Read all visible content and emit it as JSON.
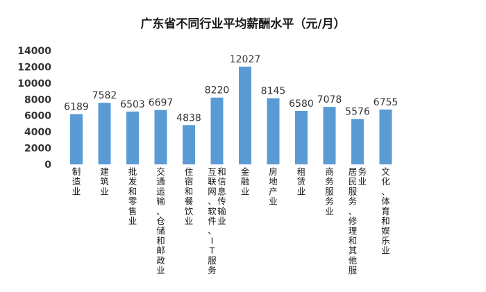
{
  "chart_data": {
    "type": "bar",
    "title": "广东省不同行业平均薪酬水平（元/月）",
    "categories": [
      "制造业",
      "建筑业",
      "批发和零售业",
      "交通运输、仓储和邮政业",
      "住宿和餐饮业",
      "互联网、软件、IT服务和信息传输业",
      "金融业",
      "房地产业",
      "租赁业",
      "商务服务业",
      "居民服务、修理和其他服务业",
      "文化、体育和娱乐业"
    ],
    "values": [
      6189,
      7582,
      6503,
      6697,
      4838,
      8220,
      12027,
      8145,
      6580,
      7078,
      5576,
      6755
    ],
    "ylim": [
      0,
      14000
    ],
    "yticks": [
      "14000",
      "12000",
      "10000",
      "8000",
      "6000",
      "4000",
      "2000",
      "0"
    ],
    "grid": false,
    "legend": "none",
    "bar_color": "#5b9bd5"
  }
}
